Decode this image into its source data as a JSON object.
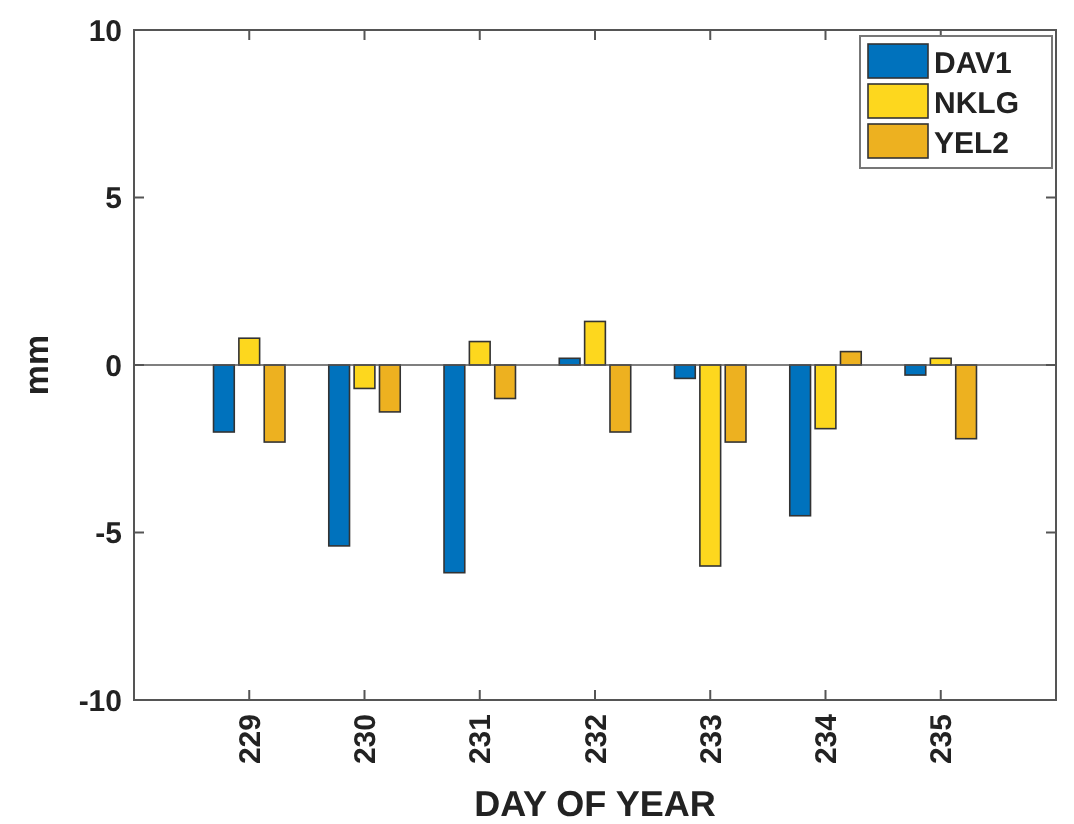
{
  "chart_data": {
    "type": "bar",
    "xlabel": "DAY OF YEAR",
    "ylabel": "mm",
    "x": [
      229,
      230,
      231,
      232,
      233,
      234,
      235
    ],
    "xlim": [
      228,
      236
    ],
    "xticks": [
      229,
      230,
      231,
      232,
      233,
      234,
      235
    ],
    "ylim": [
      -10,
      10
    ],
    "yticks": [
      -10,
      -5,
      0,
      5,
      10
    ],
    "series": [
      {
        "name": "DAV1",
        "color": "#0072bd",
        "values": [
          -2.0,
          -5.4,
          -6.2,
          0.2,
          -0.4,
          -4.5,
          -0.3
        ]
      },
      {
        "name": "NKLG",
        "color": "#fdd71e",
        "values": [
          0.8,
          -0.7,
          0.7,
          1.3,
          -6.0,
          -1.9,
          0.2
        ]
      },
      {
        "name": "YEL2",
        "color": "#edb120",
        "values": [
          -2.3,
          -1.4,
          -1.0,
          -2.0,
          -2.3,
          0.4,
          -2.2
        ]
      }
    ],
    "ref_lines": [
      {
        "axis": "y",
        "value": 0,
        "color": "#555555"
      }
    ],
    "legend": "top right",
    "grid": false
  }
}
